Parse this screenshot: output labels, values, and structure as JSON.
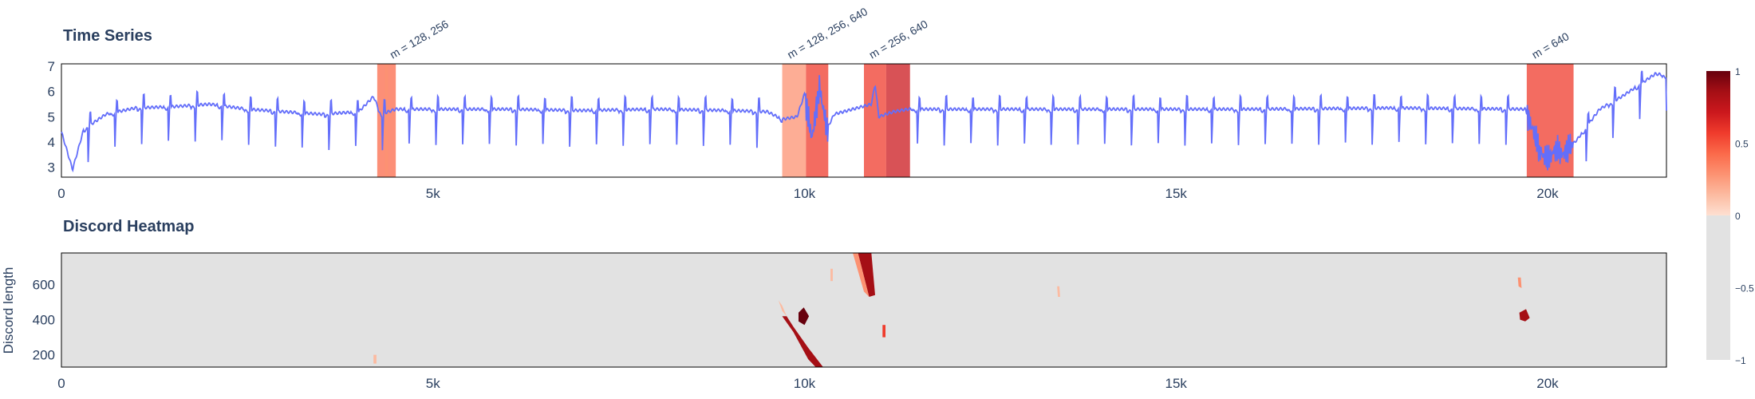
{
  "titles": {
    "top": "Time Series",
    "bottom": "Discord Heatmap"
  },
  "colors": {
    "line": "#636efa",
    "axis_text": "#2a3f5f",
    "heat_background": "#e2e2e2",
    "colorscale": [
      "#e2e2e2",
      "#fee0d2",
      "#fcbba1",
      "#fc9272",
      "#fb6a4a",
      "#ef3b2c",
      "#cb181d",
      "#a50f15",
      "#67000d"
    ]
  },
  "chart_data": [
    {
      "type": "line",
      "title": "Time Series",
      "xlabel": "",
      "ylabel": "",
      "xlim": [
        0,
        21600
      ],
      "ylim": [
        2.6,
        7.1
      ],
      "x_ticks": [
        0,
        5000,
        10000,
        15000,
        20000
      ],
      "x_tick_labels": [
        "0",
        "5k",
        "10k",
        "15k",
        "20k"
      ],
      "y_ticks": [
        3,
        4,
        5,
        6,
        7
      ],
      "y_tick_labels": [
        "3",
        "4",
        "5",
        "6",
        "7"
      ],
      "grid": false,
      "series": [
        {
          "baseline": 5.2,
          "beat_period": 360,
          "points": [
            [
              0,
              4.4
            ],
            [
              150,
              2.9
            ],
            [
              300,
              4.5
            ],
            [
              600,
              5.1
            ],
            [
              1000,
              5.35
            ],
            [
              1500,
              5.4
            ],
            [
              2000,
              5.5
            ],
            [
              2500,
              5.3
            ],
            [
              3000,
              5.2
            ],
            [
              3500,
              5.1
            ],
            [
              4000,
              5.2
            ],
            [
              4200,
              5.8
            ],
            [
              4300,
              5.1
            ],
            [
              4500,
              5.3
            ],
            [
              5000,
              5.3
            ],
            [
              6000,
              5.3
            ],
            [
              7000,
              5.25
            ],
            [
              8000,
              5.3
            ],
            [
              9000,
              5.25
            ],
            [
              9500,
              5.2
            ],
            [
              9700,
              4.9
            ],
            [
              9900,
              5.0
            ],
            [
              10000,
              5.9
            ],
            [
              10100,
              4.1
            ],
            [
              10200,
              6.2
            ],
            [
              10300,
              4.5
            ],
            [
              10400,
              5.1
            ],
            [
              10900,
              5.5
            ],
            [
              10950,
              6.3
            ],
            [
              11000,
              5.0
            ],
            [
              11200,
              5.2
            ],
            [
              11400,
              5.3
            ],
            [
              12000,
              5.3
            ],
            [
              14000,
              5.3
            ],
            [
              16000,
              5.3
            ],
            [
              18000,
              5.35
            ],
            [
              19700,
              5.3
            ],
            [
              19800,
              4.5
            ],
            [
              19900,
              3.6
            ],
            [
              20000,
              3.3
            ],
            [
              20100,
              3.7
            ],
            [
              20200,
              3.5
            ],
            [
              20400,
              4.1
            ],
            [
              20700,
              5.3
            ],
            [
              21000,
              5.8
            ],
            [
              21300,
              6.4
            ],
            [
              21450,
              6.7
            ],
            [
              21600,
              6.65
            ]
          ]
        }
      ],
      "highlight_regions": [
        {
          "x0": 4250,
          "x1": 4500,
          "intensity": 0.45
        },
        {
          "x0": 4350,
          "x1": 4400,
          "intensity": 0.35
        },
        {
          "x0": 9700,
          "x1": 10020,
          "intensity": 0.3
        },
        {
          "x0": 10020,
          "x1": 10320,
          "intensity": 0.6
        },
        {
          "x0": 10800,
          "x1": 11100,
          "intensity": 0.62
        },
        {
          "x0": 11100,
          "x1": 11420,
          "intensity": 0.78
        },
        {
          "x0": 19720,
          "x1": 20350,
          "intensity": 0.55
        }
      ],
      "annotations": [
        {
          "x": 4350,
          "text": "m = 128, 256"
        },
        {
          "x": 9700,
          "text": "m = 128, 256, 640"
        },
        {
          "x": 10800,
          "text": "m = 256, 640"
        },
        {
          "x": 19720,
          "text": "m = 640"
        }
      ]
    },
    {
      "type": "heatmap",
      "title": "Discord Heatmap",
      "xlabel": "",
      "ylabel": "Discord length",
      "xlim": [
        0,
        21600
      ],
      "ylim": [
        130,
        780
      ],
      "x_ticks": [
        0,
        5000,
        10000,
        15000,
        20000
      ],
      "x_tick_labels": [
        "0",
        "5k",
        "10k",
        "15k",
        "20k"
      ],
      "y_ticks": [
        200,
        400,
        600
      ],
      "y_tick_labels": [
        "200",
        "400",
        "600"
      ],
      "background_value": -1,
      "marks": [
        {
          "points": [
            [
              9700,
              420
            ],
            [
              9850,
              330
            ],
            [
              10050,
              175
            ],
            [
              10150,
              130
            ],
            [
              10250,
              130
            ],
            [
              10050,
              240
            ],
            [
              9850,
              360
            ],
            [
              9760,
              420
            ]
          ],
          "value": 0.85
        },
        {
          "points": [
            [
              9650,
              510
            ],
            [
              9700,
              480
            ],
            [
              9760,
              420
            ],
            [
              9700,
              450
            ]
          ],
          "value": 0.2
        },
        {
          "points": [
            [
              9920,
              440
            ],
            [
              9990,
              470
            ],
            [
              10060,
              420
            ],
            [
              10000,
              370
            ],
            [
              9920,
              390
            ]
          ],
          "value": 0.95
        },
        {
          "points": [
            [
              10720,
              780
            ],
            [
              10900,
              780
            ],
            [
              10950,
              540
            ],
            [
              10870,
              530
            ]
          ],
          "value": 0.9
        },
        {
          "points": [
            [
              10650,
              780
            ],
            [
              10720,
              780
            ],
            [
              10870,
              530
            ],
            [
              10800,
              560
            ]
          ],
          "value": 0.35
        },
        {
          "points": [
            [
              11050,
              370
            ],
            [
              11090,
              370
            ],
            [
              11090,
              300
            ],
            [
              11050,
              300
            ]
          ],
          "value": 0.6
        },
        {
          "points": [
            [
              19620,
              440
            ],
            [
              19710,
              460
            ],
            [
              19760,
              410
            ],
            [
              19700,
              390
            ],
            [
              19630,
              400
            ]
          ],
          "value": 0.9
        },
        {
          "points": [
            [
              19600,
              640
            ],
            [
              19640,
              640
            ],
            [
              19650,
              580
            ],
            [
              19610,
              590
            ]
          ],
          "value": 0.25
        },
        {
          "points": [
            [
              10350,
              690
            ],
            [
              10380,
              690
            ],
            [
              10380,
              620
            ],
            [
              10350,
              620
            ]
          ],
          "value": 0.15
        },
        {
          "points": [
            [
              4200,
              200
            ],
            [
              4240,
              200
            ],
            [
              4240,
              150
            ],
            [
              4200,
              150
            ]
          ],
          "value": 0.1
        },
        {
          "points": [
            [
              13400,
              590
            ],
            [
              13430,
              590
            ],
            [
              13440,
              530
            ],
            [
              13410,
              530
            ]
          ],
          "value": 0.1
        }
      ]
    }
  ],
  "colorbar": {
    "min": -1,
    "max": 1,
    "tick_values": [
      1,
      0.5,
      0,
      -0.5,
      -1
    ],
    "tick_labels": [
      "1",
      "0.5",
      "0",
      "−0.5",
      "−1"
    ]
  }
}
